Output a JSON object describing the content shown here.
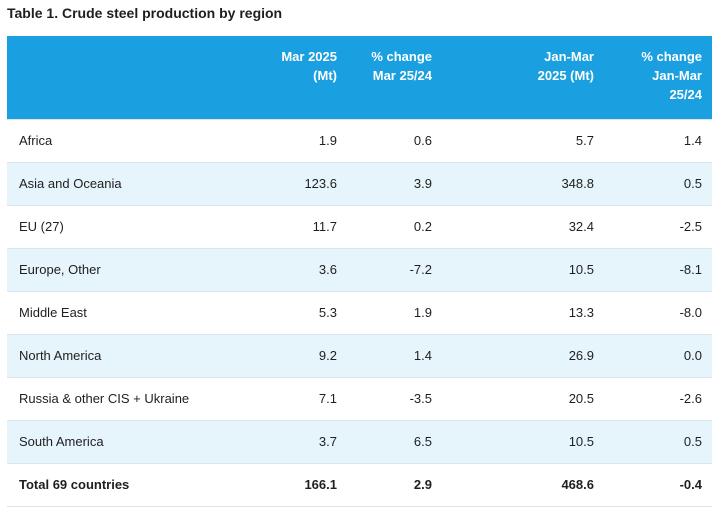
{
  "title": "Table 1. Crude steel production by region",
  "header": {
    "col_region": "",
    "col_mar2025": [
      "Mar 2025",
      "(Mt)"
    ],
    "col_pct_mar": [
      "% change",
      "Mar 25/24"
    ],
    "col_janmar": [
      "Jan-Mar",
      "2025 (Mt)"
    ],
    "col_pct_janmar": [
      "% change",
      "Jan-Mar",
      "25/24"
    ]
  },
  "rows": [
    {
      "region": "Africa",
      "mar2025": "1.9",
      "pct_mar": "0.6",
      "janmar": "5.7",
      "pct_janmar": "1.4"
    },
    {
      "region": "Asia and Oceania",
      "mar2025": "123.6",
      "pct_mar": "3.9",
      "janmar": "348.8",
      "pct_janmar": "0.5"
    },
    {
      "region": "EU (27)",
      "mar2025": "11.7",
      "pct_mar": "0.2",
      "janmar": "32.4",
      "pct_janmar": "-2.5"
    },
    {
      "region": "Europe, Other",
      "mar2025": "3.6",
      "pct_mar": "-7.2",
      "janmar": "10.5",
      "pct_janmar": "-8.1"
    },
    {
      "region": "Middle East",
      "mar2025": "5.3",
      "pct_mar": "1.9",
      "janmar": "13.3",
      "pct_janmar": "-8.0"
    },
    {
      "region": "North America",
      "mar2025": "9.2",
      "pct_mar": "1.4",
      "janmar": "26.9",
      "pct_janmar": "0.0"
    },
    {
      "region": "Russia & other CIS + Ukraine",
      "mar2025": "7.1",
      "pct_mar": "-3.5",
      "janmar": "20.5",
      "pct_janmar": "-2.6"
    },
    {
      "region": "South America",
      "mar2025": "3.7",
      "pct_mar": "6.5",
      "janmar": "10.5",
      "pct_janmar": "0.5"
    }
  ],
  "total": {
    "region": "Total 69 countries",
    "mar2025": "166.1",
    "pct_mar": "2.9",
    "janmar": "468.6",
    "pct_janmar": "-0.4"
  },
  "colors": {
    "header_bg": "#1aa0e0",
    "alt_row_bg": "#e6f4fb",
    "header_text": "#ffffff"
  }
}
